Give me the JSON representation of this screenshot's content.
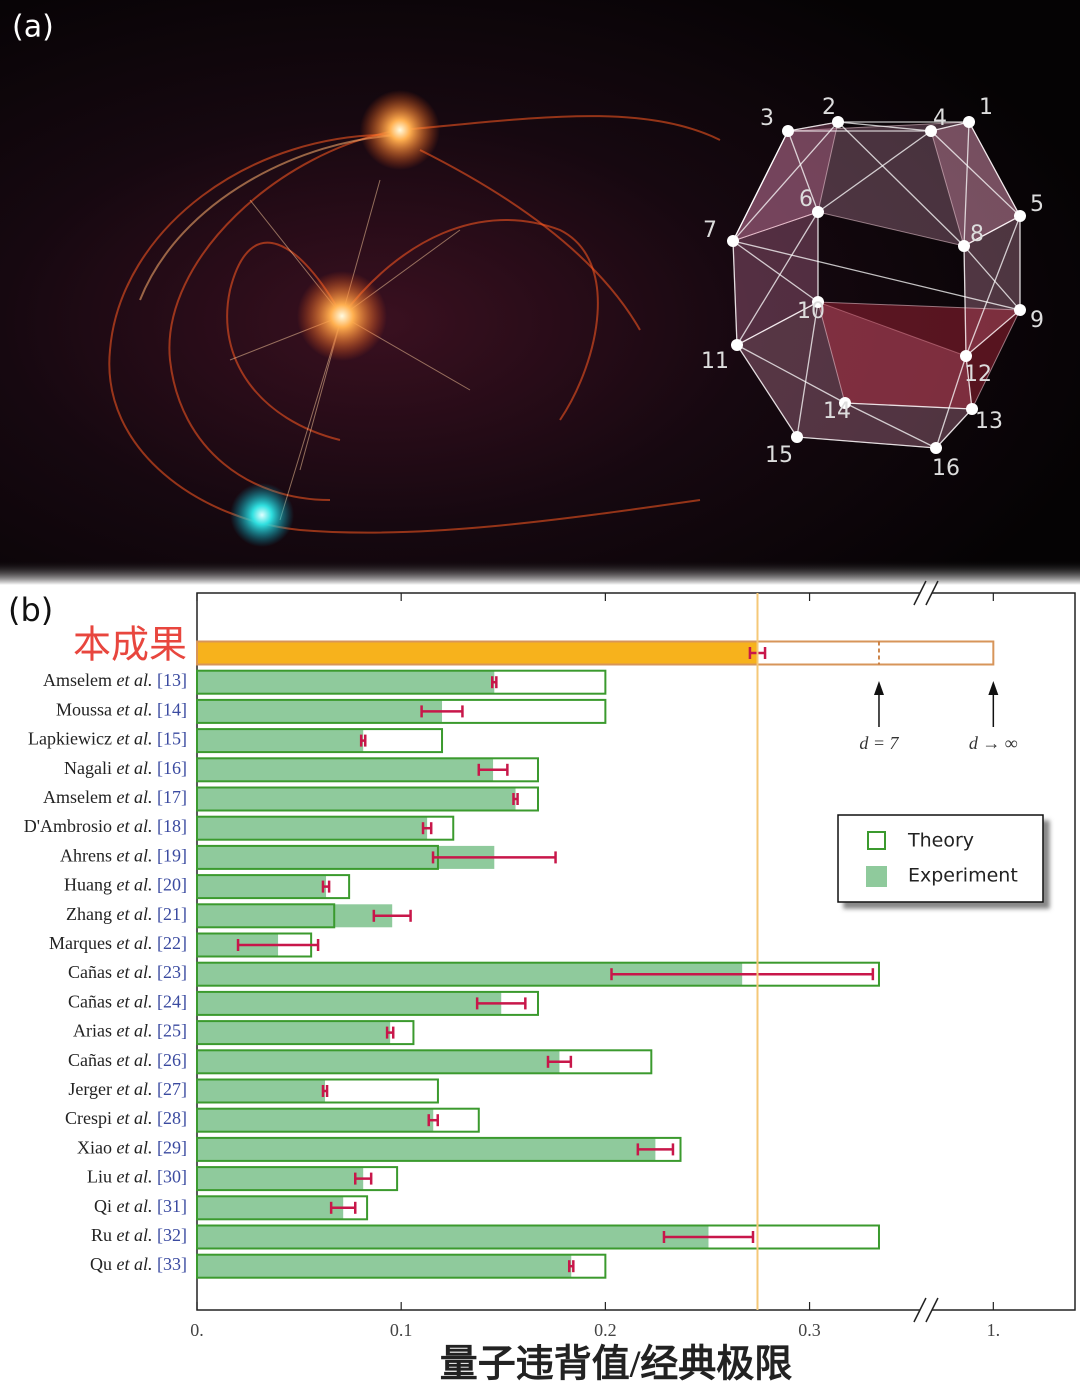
{
  "panel_a": {
    "label": "(a)",
    "vertices": [
      "1",
      "2",
      "3",
      "4",
      "5",
      "6",
      "7",
      "8",
      "9",
      "10",
      "11",
      "12",
      "13",
      "14",
      "15",
      "16"
    ]
  },
  "chart_data": {
    "type": "bar",
    "orientation": "horizontal",
    "panel_label": "(b)",
    "x_label": "量子违背值/经典极限",
    "categories": [
      "本成果",
      "Amselem et al. [13]",
      "Moussa et al. [14]",
      "Lapkiewicz et al. [15]",
      "Nagali et al. [16]",
      "Amselem et al. [17]",
      "D'Ambrosio et al. [18]",
      "Ahrens et al. [19]",
      "Huang et al. [20]",
      "Zhang et al. [21]",
      "Marques et al. [22]",
      "Cañas et al. [23]",
      "Cañas et al. [24]",
      "Arias et al. [25]",
      "Cañas et al. [26]",
      "Jerger et al. [27]",
      "Crespi et al. [28]",
      "Xiao et al. [29]",
      "Liu et al. [30]",
      "Qi et al. [31]",
      "Ru et al. [32]",
      "Qu et al. [33]"
    ],
    "series": [
      {
        "name": "Theory",
        "color": "#3b9a2e",
        "values": [
          1,
          0.2,
          0.2,
          0.12,
          0.167,
          0.167,
          0.1255,
          0.118,
          0.0745,
          0.0672,
          0.0559,
          0.334,
          0.167,
          0.106,
          0.2225,
          0.118,
          0.138,
          0.2368,
          0.098,
          0.0833,
          0.334,
          0.2
        ]
      },
      {
        "name": "Experiment",
        "color": "#8fca9c",
        "error_color": "#c8174a",
        "values": [
          0.2745,
          0.1456,
          0.12,
          0.0814,
          0.145,
          0.156,
          0.1127,
          0.1456,
          0.0632,
          0.0956,
          0.0397,
          0.267,
          0.149,
          0.0946,
          0.1775,
          0.0627,
          0.1157,
          0.2245,
          0.0814,
          0.0716,
          0.2505,
          0.1833
        ],
        "errors": [
          0.0037,
          0.001,
          0.01,
          0.001,
          0.007,
          0.001,
          0.002,
          0.03,
          0.0015,
          0.009,
          0.0196,
          0.064,
          0.0118,
          0.0015,
          0.0056,
          0.001,
          0.0022,
          0.0086,
          0.0039,
          0.0059,
          0.0218,
          0.001
        ]
      }
    ],
    "highlight_index": 0,
    "highlight_color": "#f7b21c",
    "highlight_edge_color": "#d7955a",
    "highlight_label_color": "#e8463e",
    "reference_line": {
      "x": 0.2745,
      "color": "#f5c878"
    },
    "annotations": [
      {
        "text": "d = 7",
        "x": 0.334
      },
      {
        "text": "d → ∞",
        "x": 1
      }
    ],
    "xlim": [
      0,
      1.04
    ],
    "axis_break": [
      0.357,
      0.967
    ],
    "xticks": [
      {
        "value": 0,
        "label": "0."
      },
      0.1,
      0.2,
      0.3,
      {
        "value": 1,
        "label": "1."
      }
    ],
    "legend_position": "upper right"
  }
}
